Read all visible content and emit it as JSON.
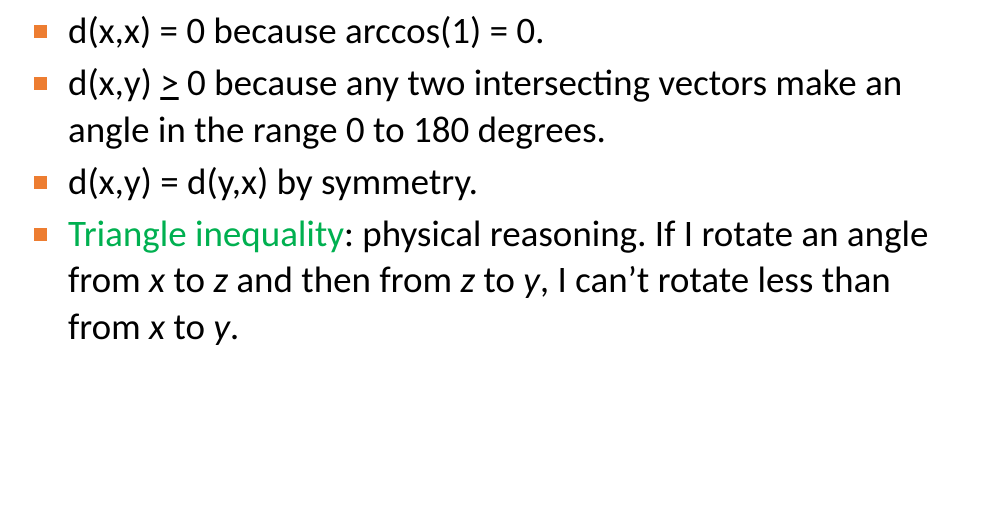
{
  "slide": {
    "bullet_color": "#ed7d31",
    "text_color": "#000000",
    "highlight_color": "#00b050",
    "background_color": "#ffffff",
    "font_family": "Calibri",
    "font_size_pt": 28,
    "items": [
      {
        "segments": [
          {
            "text": "d(x,x) = 0 because arccos(1) = 0."
          }
        ]
      },
      {
        "segments": [
          {
            "text": "d(x,y) "
          },
          {
            "text": ">",
            "underline": true
          },
          {
            "text": " 0 because any two intersecting vectors make an angle in the range 0 to 180 degrees."
          }
        ]
      },
      {
        "segments": [
          {
            "text": "d(x,y) = d(y,x) by symmetry."
          }
        ]
      },
      {
        "segments": [
          {
            "text": "Triangle inequality",
            "highlight": true
          },
          {
            "text": ": physical reasoning.  If I rotate an angle from "
          },
          {
            "text": "x",
            "italic": true
          },
          {
            "text": "  to "
          },
          {
            "text": "z",
            "italic": true
          },
          {
            "text": "  and then from "
          },
          {
            "text": "z",
            "italic": true
          },
          {
            "text": "  to "
          },
          {
            "text": "y",
            "italic": true
          },
          {
            "text": ", I can’t rotate less than from "
          },
          {
            "text": "x",
            "italic": true
          },
          {
            "text": "  to "
          },
          {
            "text": "y",
            "italic": true
          },
          {
            "text": "."
          }
        ]
      }
    ]
  }
}
